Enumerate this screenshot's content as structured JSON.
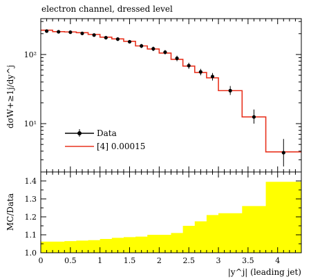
{
  "figure": {
    "title": "electron channel, dressed level"
  },
  "chart_data": [
    {
      "type": "line",
      "panel": "main",
      "title": "electron channel, dressed level",
      "xlabel": "",
      "ylabel": "dσW+≥1j/dy^j",
      "yscale": "log",
      "xlim": [
        0,
        4.4
      ],
      "ylim": [
        2.0,
        330
      ],
      "yticks": [
        {
          "value": 10,
          "label": "10¹"
        },
        {
          "value": 100,
          "label": "10²"
        }
      ],
      "x_edges": [
        0,
        0.2,
        0.4,
        0.6,
        0.8,
        1.0,
        1.2,
        1.4,
        1.6,
        1.8,
        2.0,
        2.2,
        2.4,
        2.6,
        2.8,
        3.0,
        3.4,
        3.8,
        4.4
      ],
      "series": [
        {
          "name": "Data",
          "style": "points-with-errors",
          "color": "#000000",
          "x": [
            0.1,
            0.3,
            0.5,
            0.7,
            0.9,
            1.1,
            1.3,
            1.5,
            1.7,
            1.9,
            2.1,
            2.3,
            2.5,
            2.7,
            2.9,
            3.2,
            3.6,
            4.1
          ],
          "y": [
            218,
            213,
            210,
            202,
            191,
            175,
            167,
            153,
            133,
            121,
            108,
            88,
            69,
            56,
            48,
            30,
            12.5,
            3.8
          ],
          "err_low": [
            12,
            11,
            11,
            11,
            10,
            10,
            10,
            9,
            9,
            9,
            8,
            8,
            7,
            6,
            6,
            4,
            2.5,
            1.4
          ],
          "err_high": [
            12,
            11,
            11,
            11,
            10,
            10,
            10,
            9,
            9,
            9,
            8,
            8,
            7,
            6,
            6,
            5,
            3.5,
            2.2
          ]
        },
        {
          "name": "[4] 0.00015",
          "style": "step",
          "color": "#e8321e",
          "values": [
            225,
            214,
            212,
            207,
            195,
            178,
            168,
            155,
            133,
            120,
            105,
            85,
            68,
            55,
            46,
            30,
            12.5,
            3.9
          ]
        }
      ],
      "legend": {
        "placement": "lower-left",
        "entries": [
          {
            "label": "Data",
            "marker": "point"
          },
          {
            "label": "[4] 0.00015",
            "marker": "line"
          }
        ]
      }
    },
    {
      "type": "area",
      "panel": "ratio",
      "ylabel": "MC/Data",
      "xlabel": "|y^j| (leading jet)",
      "xlim": [
        0,
        4.4
      ],
      "ylim": [
        1.0,
        1.45
      ],
      "xticks": [
        0,
        0.5,
        1,
        1.5,
        2,
        2.5,
        3,
        3.5,
        4
      ],
      "xticklabels": [
        "0",
        "0.5",
        "1",
        "1.5",
        "2",
        "2.5",
        "3",
        "3.5",
        "4"
      ],
      "yticks": [
        1.0,
        1.1,
        1.2,
        1.3,
        1.4
      ],
      "yticklabels": [
        "1.0",
        "1.1",
        "1.2",
        "1.3",
        "1.4"
      ],
      "x_edges": [
        0,
        0.2,
        0.4,
        0.6,
        0.8,
        1.0,
        1.2,
        1.4,
        1.6,
        1.8,
        2.0,
        2.2,
        2.4,
        2.6,
        2.8,
        3.0,
        3.4,
        3.8,
        4.4
      ],
      "band_upper": [
        1.062,
        1.062,
        1.065,
        1.068,
        1.07,
        1.077,
        1.083,
        1.087,
        1.09,
        1.1,
        1.1,
        1.11,
        1.15,
        1.175,
        1.21,
        1.22,
        1.26,
        1.395
      ],
      "band_color": "#ffff00"
    }
  ]
}
